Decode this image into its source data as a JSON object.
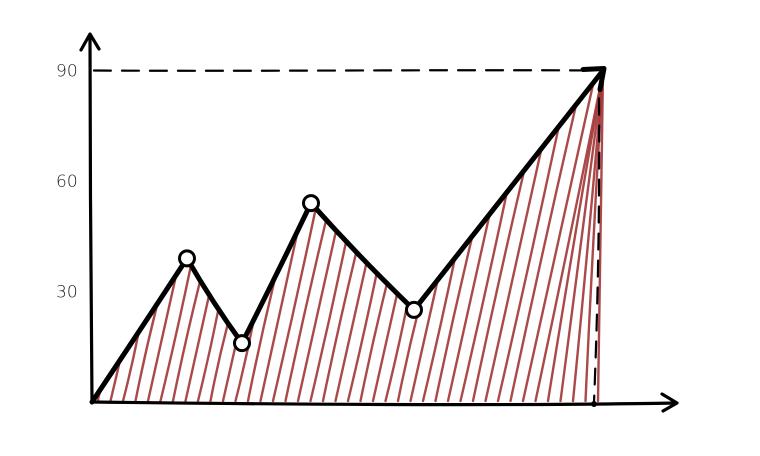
{
  "chart_data": {
    "type": "line",
    "style": "hand-drawn sketch with hatched area fill under the line",
    "x": [
      0,
      1,
      2,
      3,
      4,
      5
    ],
    "y": [
      0,
      39,
      16,
      54,
      25,
      90
    ],
    "markers_on": [
      1,
      2,
      3,
      4
    ],
    "ylim": [
      0,
      100
    ],
    "y_ticks": [
      "30",
      "60",
      "90"
    ],
    "y_tick_values": [
      30,
      60,
      90
    ],
    "reference_line": {
      "y": 90,
      "style": "dashed"
    },
    "grid": false,
    "legend": "none",
    "arrow_at_end": true,
    "colors": {
      "line": "#000000",
      "hatch": "#a33a3a",
      "marker_fill": "#ffffff"
    }
  }
}
